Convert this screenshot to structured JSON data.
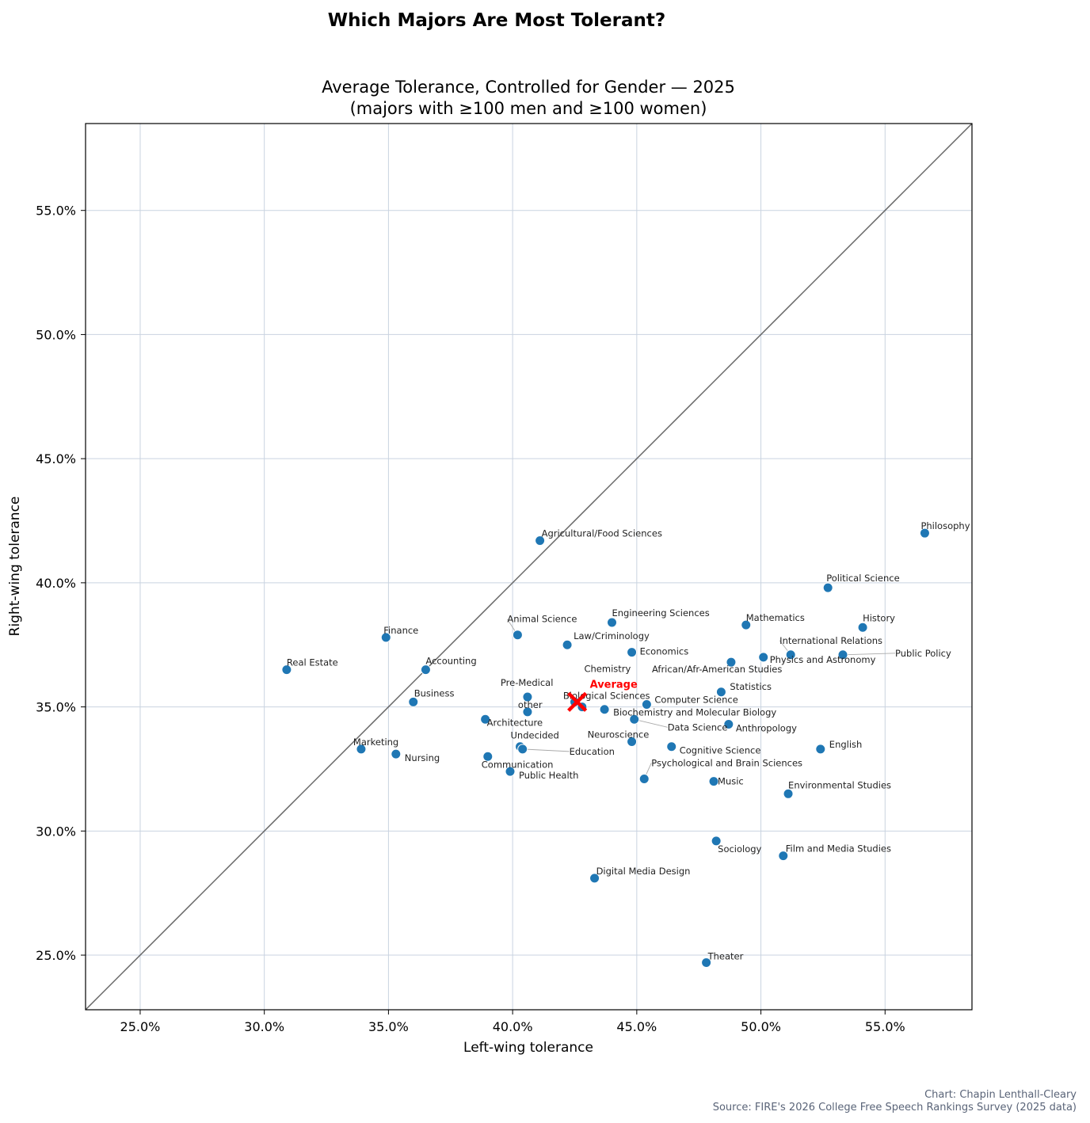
{
  "suptitle": "Which Majors Are Most Tolerant?",
  "credit": {
    "line1": "Chart: Chapin Lenthall-Cleary",
    "line2": "Source: FIRE's 2026 College Free Speech Rankings Survey (2025 data)"
  },
  "colors": {
    "point": "#1f77b4",
    "average": "#ff0000",
    "diagonal": "#666666",
    "grid": "#c9d3e0",
    "leader": "#aaaaaa",
    "credit": "#5a6478"
  },
  "chart_data": {
    "type": "scatter",
    "title": "Average Tolerance, Controlled for Gender — 2025",
    "subtitle": "(majors with ≥100 men and ≥100 women)",
    "xlabel": "Left-wing tolerance",
    "ylabel": "Right-wing tolerance",
    "xlim": [
      22.8,
      58.5
    ],
    "ylim": [
      22.8,
      58.5
    ],
    "x_ticks": [
      25,
      30,
      35,
      40,
      45,
      50,
      55
    ],
    "y_ticks": [
      25,
      30,
      35,
      40,
      45,
      50,
      55
    ],
    "x_tick_labels": [
      "25.0%",
      "30.0%",
      "35.0%",
      "40.0%",
      "45.0%",
      "50.0%",
      "55.0%"
    ],
    "y_tick_labels": [
      "25.0%",
      "30.0%",
      "35.0%",
      "40.0%",
      "45.0%",
      "50.0%",
      "55.0%"
    ],
    "grid": true,
    "reference_line": "y = x",
    "average": {
      "label": "Average",
      "x": 42.6,
      "y": 35.2
    },
    "points": [
      {
        "name": "Philosophy",
        "x": 56.6,
        "y": 42.0
      },
      {
        "name": "Agricultural/Food Sciences",
        "x": 41.1,
        "y": 41.7
      },
      {
        "name": "Political Science",
        "x": 52.7,
        "y": 39.8
      },
      {
        "name": "Engineering Sciences",
        "x": 44.0,
        "y": 38.4
      },
      {
        "name": "Mathematics",
        "x": 49.4,
        "y": 38.3
      },
      {
        "name": "History",
        "x": 54.1,
        "y": 38.2
      },
      {
        "name": "Animal Science",
        "x": 40.2,
        "y": 37.9
      },
      {
        "name": "Finance",
        "x": 34.9,
        "y": 37.8
      },
      {
        "name": "Law/Criminology",
        "x": 42.2,
        "y": 37.5
      },
      {
        "name": "Economics",
        "x": 44.8,
        "y": 37.2
      },
      {
        "name": "International Relations",
        "x": 51.2,
        "y": 37.1
      },
      {
        "name": "Public Policy",
        "x": 53.3,
        "y": 37.1
      },
      {
        "name": "Physics and Astronomy",
        "x": 50.1,
        "y": 37.0
      },
      {
        "name": "African/Afr-American Studies",
        "x": 48.8,
        "y": 36.8
      },
      {
        "name": "Real Estate",
        "x": 30.9,
        "y": 36.5
      },
      {
        "name": "Accounting",
        "x": 36.5,
        "y": 36.5
      },
      {
        "name": "Statistics",
        "x": 48.4,
        "y": 35.6
      },
      {
        "name": "Pre-Medical",
        "x": 40.6,
        "y": 35.4
      },
      {
        "name": "Chemistry",
        "x": 42.5,
        "y": 35.2
      },
      {
        "name": "Business",
        "x": 36.0,
        "y": 35.2
      },
      {
        "name": "Computer Science",
        "x": 45.4,
        "y": 35.1
      },
      {
        "name": "Biological Sciences",
        "x": 42.8,
        "y": 35.0
      },
      {
        "name": "Biochemistry and Molecular Biology",
        "x": 43.7,
        "y": 34.9
      },
      {
        "name": "other",
        "x": 40.6,
        "y": 34.8
      },
      {
        "name": "Data Science",
        "x": 44.9,
        "y": 34.5
      },
      {
        "name": "Architecture",
        "x": 38.9,
        "y": 34.5
      },
      {
        "name": "Anthropology",
        "x": 48.7,
        "y": 34.3
      },
      {
        "name": "Neuroscience",
        "x": 44.8,
        "y": 33.6
      },
      {
        "name": "Undecided",
        "x": 40.3,
        "y": 33.4
      },
      {
        "name": "Cognitive Science",
        "x": 46.4,
        "y": 33.4
      },
      {
        "name": "Marketing",
        "x": 33.9,
        "y": 33.3
      },
      {
        "name": "English",
        "x": 52.4,
        "y": 33.3
      },
      {
        "name": "Education",
        "x": 40.4,
        "y": 33.3
      },
      {
        "name": "Nursing",
        "x": 35.3,
        "y": 33.1
      },
      {
        "name": "Communication",
        "x": 39.0,
        "y": 33.0
      },
      {
        "name": "Public Health",
        "x": 39.9,
        "y": 32.4
      },
      {
        "name": "Psychological and Brain Sciences",
        "x": 45.3,
        "y": 32.1
      },
      {
        "name": "Music",
        "x": 48.1,
        "y": 32.0
      },
      {
        "name": "Environmental Studies",
        "x": 51.1,
        "y": 31.5
      },
      {
        "name": "Sociology",
        "x": 48.2,
        "y": 29.6
      },
      {
        "name": "Film and Media Studies",
        "x": 50.9,
        "y": 29.0
      },
      {
        "name": "Digital Media Design",
        "x": 43.3,
        "y": 28.1
      },
      {
        "name": "Theater",
        "x": 47.8,
        "y": 24.7
      }
    ]
  }
}
